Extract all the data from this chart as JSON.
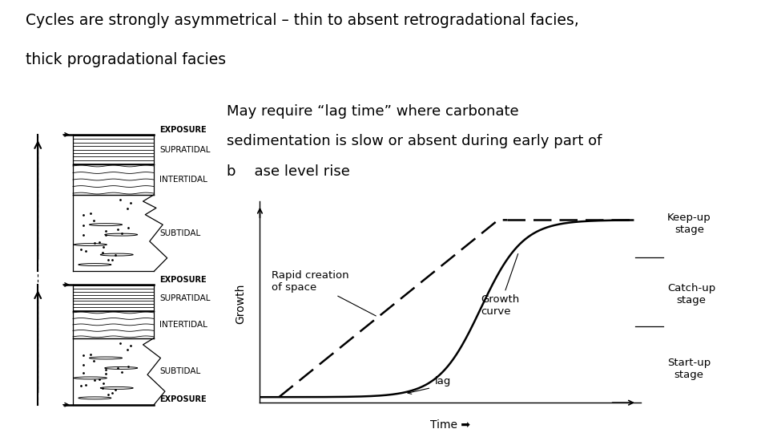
{
  "title_line1": "Cycles are strongly asymmetrical – thin to absent retrogradational facies,",
  "title_line2": "thick progradational facies",
  "title_fontsize": 13.5,
  "title_font": "DejaVu Sans",
  "bg_color": "#ffffff",
  "text_color": "#000000",
  "mid_text_line1": "May require “lag time” where carbonate",
  "mid_text_line2": "sedimentation is slow or absent during early part of",
  "mid_text_line3": "b    ase level rise",
  "mid_text_fontsize": 13,
  "graph_xlabel": "Time ➡",
  "graph_ylabel": "Growth",
  "dashed_label": "Rapid creation\nof space",
  "solid_label": "Growth\ncurve",
  "lag_label": "lag",
  "stage_keepup": "Keep-up\nstage",
  "stage_catchup": "Catch-up\nstage",
  "stage_startup": "Start-up\nstage",
  "strat_label_fontsize": 7.5,
  "exposure_label_fontsize": 7,
  "fig_width": 9.6,
  "fig_height": 5.4,
  "fig_dpi": 100
}
